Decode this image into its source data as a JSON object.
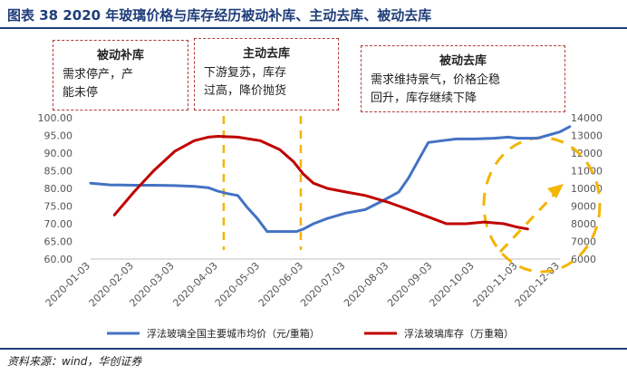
{
  "figure": {
    "title": "图表 38   2020 年玻璃价格与库存经历被动补库、主动去库、被动去库",
    "source": "资料来源：wind，华创证券"
  },
  "annotations": [
    {
      "header": "被动补库",
      "lines": [
        "需求停产，产",
        "能未停"
      ]
    },
    {
      "header": "主动去库",
      "lines": [
        "下游复苏，库存",
        "过高，降价抛货"
      ]
    },
    {
      "header": "被动去库",
      "lines": [
        "需求维持景气，价格企稳",
        "回升，库存继续下降"
      ]
    }
  ],
  "chart_data": {
    "type": "line",
    "title": "",
    "categories": [
      "2020-01-03",
      "2020-02-03",
      "2020-03-03",
      "2020-04-03",
      "2020-05-03",
      "2020-06-03",
      "2020-07-03",
      "2020-08-03",
      "2020-09-03",
      "2020-10-03",
      "2020-11-03",
      "2020-12-03"
    ],
    "y_left": {
      "ylim": [
        60,
        100
      ],
      "ticks": [
        "100.00",
        "95.00",
        "90.00",
        "85.00",
        "80.00",
        "75.00",
        "70.00",
        "65.00",
        "60.00"
      ]
    },
    "y_right": {
      "ylim": [
        6000,
        14000
      ],
      "ticks": [
        "14000",
        "13000",
        "12000",
        "11000",
        "10000",
        "9000",
        "8000",
        "7000",
        "6000"
      ]
    },
    "series": [
      {
        "name": "浮法玻璃全国主要城市均价（元/重箱）",
        "axis": "left",
        "color": "#4472c4",
        "points": [
          {
            "x": "2020-01-03",
            "y": 81.5
          },
          {
            "x": "2020-01-17",
            "y": 81.0
          },
          {
            "x": "2020-02-03",
            "y": 80.9
          },
          {
            "x": "2020-02-17",
            "y": 80.9
          },
          {
            "x": "2020-03-03",
            "y": 80.8
          },
          {
            "x": "2020-03-17",
            "y": 80.6
          },
          {
            "x": "2020-03-27",
            "y": 80.2
          },
          {
            "x": "2020-04-03",
            "y": 79.2
          },
          {
            "x": "2020-04-10",
            "y": 78.5
          },
          {
            "x": "2020-04-17",
            "y": 78.0
          },
          {
            "x": "2020-04-24",
            "y": 74.5
          },
          {
            "x": "2020-05-01",
            "y": 71.5
          },
          {
            "x": "2020-05-08",
            "y": 67.8
          },
          {
            "x": "2020-05-15",
            "y": 67.8
          },
          {
            "x": "2020-05-22",
            "y": 67.8
          },
          {
            "x": "2020-05-29",
            "y": 67.8
          },
          {
            "x": "2020-06-03",
            "y": 68.5
          },
          {
            "x": "2020-06-10",
            "y": 70.0
          },
          {
            "x": "2020-06-20",
            "y": 71.5
          },
          {
            "x": "2020-07-03",
            "y": 73.0
          },
          {
            "x": "2020-07-17",
            "y": 74.0
          },
          {
            "x": "2020-07-27",
            "y": 76.0
          },
          {
            "x": "2020-08-03",
            "y": 77.5
          },
          {
            "x": "2020-08-10",
            "y": 79.0
          },
          {
            "x": "2020-08-17",
            "y": 83.0
          },
          {
            "x": "2020-08-24",
            "y": 88.0
          },
          {
            "x": "2020-08-31",
            "y": 93.0
          },
          {
            "x": "2020-09-10",
            "y": 93.5
          },
          {
            "x": "2020-09-20",
            "y": 94.0
          },
          {
            "x": "2020-10-03",
            "y": 94.0
          },
          {
            "x": "2020-10-17",
            "y": 94.2
          },
          {
            "x": "2020-10-27",
            "y": 94.5
          },
          {
            "x": "2020-11-03",
            "y": 94.2
          },
          {
            "x": "2020-11-17",
            "y": 94.2
          },
          {
            "x": "2020-11-24",
            "y": 95.0
          },
          {
            "x": "2020-12-03",
            "y": 96.0
          },
          {
            "x": "2020-12-10",
            "y": 97.5
          }
        ]
      },
      {
        "name": "浮法玻璃库存（万重箱）",
        "axis": "right",
        "color": "#c00000",
        "points": [
          {
            "x": "2020-01-20",
            "y": 8500
          },
          {
            "x": "2020-02-03",
            "y": 9800
          },
          {
            "x": "2020-02-17",
            "y": 11000
          },
          {
            "x": "2020-03-03",
            "y": 12100
          },
          {
            "x": "2020-03-17",
            "y": 12700
          },
          {
            "x": "2020-03-27",
            "y": 12900
          },
          {
            "x": "2020-04-03",
            "y": 12950
          },
          {
            "x": "2020-04-17",
            "y": 12900
          },
          {
            "x": "2020-05-03",
            "y": 12700
          },
          {
            "x": "2020-05-17",
            "y": 12200
          },
          {
            "x": "2020-05-27",
            "y": 11500
          },
          {
            "x": "2020-06-03",
            "y": 10800
          },
          {
            "x": "2020-06-10",
            "y": 10300
          },
          {
            "x": "2020-06-20",
            "y": 10000
          },
          {
            "x": "2020-07-03",
            "y": 9800
          },
          {
            "x": "2020-07-17",
            "y": 9600
          },
          {
            "x": "2020-08-03",
            "y": 9200
          },
          {
            "x": "2020-08-17",
            "y": 8800
          },
          {
            "x": "2020-09-03",
            "y": 8300
          },
          {
            "x": "2020-09-13",
            "y": 8000
          },
          {
            "x": "2020-09-27",
            "y": 8000
          },
          {
            "x": "2020-10-10",
            "y": 8100
          },
          {
            "x": "2020-10-24",
            "y": 8000
          },
          {
            "x": "2020-11-03",
            "y": 7800
          },
          {
            "x": "2020-11-10",
            "y": 7700
          }
        ]
      }
    ],
    "phase_markers": [
      {
        "x": "2020-04-07",
        "color": "#f4b400"
      },
      {
        "x": "2020-06-01",
        "color": "#f4b400"
      }
    ],
    "highlight": {
      "kind": "dashed-circle-with-arrow",
      "color": "#f4b400"
    },
    "legend_position": "bottom",
    "grid": false
  }
}
